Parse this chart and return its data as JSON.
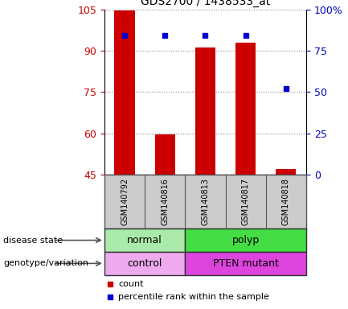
{
  "title": "GDS2700 / 1438533_at",
  "samples": [
    "GSM140792",
    "GSM140816",
    "GSM140813",
    "GSM140817",
    "GSM140818"
  ],
  "bar_values": [
    104.5,
    59.5,
    91.0,
    93.0,
    47.0
  ],
  "bar_baseline": 45,
  "percentile_values": [
    84,
    84,
    84,
    84,
    52
  ],
  "left_ylim": [
    45,
    105
  ],
  "left_yticks": [
    45,
    60,
    75,
    90,
    105
  ],
  "right_ylim": [
    0,
    100
  ],
  "right_yticks": [
    0,
    25,
    50,
    75,
    100
  ],
  "bar_color": "#cc0000",
  "percentile_color": "#0000cc",
  "disease_states": [
    {
      "label": "normal",
      "start": 0,
      "end": 2,
      "color": "#aaeaaa"
    },
    {
      "label": "polyp",
      "start": 2,
      "end": 5,
      "color": "#44dd44"
    }
  ],
  "genotypes": [
    {
      "label": "control",
      "start": 0,
      "end": 2,
      "color": "#eeaaee"
    },
    {
      "label": "PTEN mutant",
      "start": 2,
      "end": 5,
      "color": "#dd44dd"
    }
  ],
  "disease_state_row_label": "disease state",
  "genotype_row_label": "genotype/variation",
  "legend_count_label": "count",
  "legend_pct_label": "percentile rank within the sample",
  "left_tick_color": "#cc0000",
  "right_tick_color": "#0000bb",
  "sample_box_color": "#cccccc",
  "grid_line_color": "#888888",
  "right_ytick_labels": [
    "0",
    "25",
    "50",
    "75",
    "100%"
  ]
}
